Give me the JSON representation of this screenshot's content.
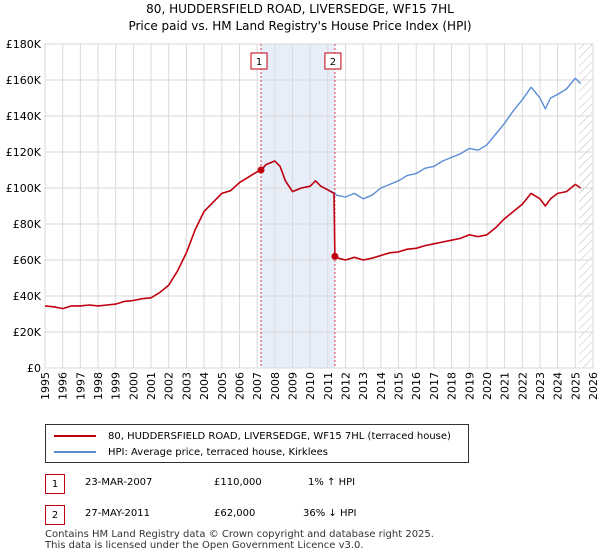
{
  "title": "80, HUDDERSFIELD ROAD, LIVERSEDGE, WF15 7HL",
  "subtitle": "Price paid vs. HM Land Registry's House Price Index (HPI)",
  "chart_data": {
    "type": "line",
    "title": "80, HUDDERSFIELD ROAD, LIVERSEDGE, WF15 7HL",
    "subtitle": "Price paid vs. HM Land Registry's House Price Index (HPI)",
    "xlabel": "",
    "ylabel": "",
    "xlim": [
      1995,
      2026
    ],
    "ylim": [
      0,
      180000
    ],
    "yticks": [
      0,
      20000,
      40000,
      60000,
      80000,
      100000,
      120000,
      140000,
      160000,
      180000
    ],
    "ytick_labels": [
      "£0",
      "£20K",
      "£40K",
      "£60K",
      "£80K",
      "£100K",
      "£120K",
      "£140K",
      "£160K",
      "£180K"
    ],
    "xticks": [
      1995,
      1996,
      1997,
      1998,
      1999,
      2000,
      2001,
      2002,
      2003,
      2004,
      2005,
      2006,
      2007,
      2008,
      2009,
      2010,
      2011,
      2012,
      2013,
      2014,
      2015,
      2016,
      2017,
      2018,
      2019,
      2020,
      2021,
      2022,
      2023,
      2024,
      2025,
      2026
    ],
    "xtick_labels": [
      "1995",
      "1996",
      "1997",
      "1998",
      "1999",
      "2000",
      "2001",
      "2002",
      "2003",
      "2004",
      "2005",
      "2006",
      "2007",
      "2008",
      "2009",
      "2010",
      "2011",
      "2012",
      "2013",
      "2014",
      "2015",
      "2016",
      "2017",
      "2018",
      "2019",
      "2020",
      "2021",
      "2022",
      "2023",
      "2024",
      "2025",
      "2026"
    ],
    "grid": true,
    "shaded_region": [
      2007.22,
      2011.4
    ],
    "future_region_start": 2025.2,
    "series": [
      {
        "name": "80, HUDDERSFIELD ROAD, LIVERSEDGE, WF15 7HL (terraced house)",
        "color": "#c0000f",
        "x": [
          1995.0,
          1995.5,
          1996.0,
          1996.5,
          1997.0,
          1997.5,
          1998.0,
          1998.5,
          1999.0,
          1999.5,
          2000.0,
          2000.5,
          2001.0,
          2001.5,
          2002.0,
          2002.5,
          2003.0,
          2003.5,
          2004.0,
          2004.5,
          2005.0,
          2005.5,
          2006.0,
          2006.5,
          2007.0,
          2007.22,
          2007.5,
          2008.0,
          2008.3,
          2008.6,
          2009.0,
          2009.5,
          2010.0,
          2010.3,
          2010.6,
          2011.0,
          2011.35,
          2011.4,
          2011.6,
          2012.0,
          2012.5,
          2013.0,
          2013.5,
          2014.0,
          2014.5,
          2015.0,
          2015.5,
          2016.0,
          2016.5,
          2017.0,
          2017.5,
          2018.0,
          2018.5,
          2019.0,
          2019.5,
          2020.0,
          2020.5,
          2021.0,
          2021.5,
          2022.0,
          2022.5,
          2023.0,
          2023.3,
          2023.6,
          2024.0,
          2024.5,
          2025.0,
          2025.3
        ],
        "values": [
          34500,
          34000,
          33000,
          34500,
          34500,
          35000,
          34500,
          35000,
          35500,
          37000,
          37500,
          38500,
          39000,
          42000,
          46000,
          54000,
          64000,
          77000,
          87000,
          92000,
          97000,
          98500,
          103000,
          106000,
          109000,
          110000,
          113000,
          115000,
          112000,
          104000,
          98000,
          100000,
          101000,
          104000,
          101000,
          99000,
          97000,
          62000,
          61000,
          60000,
          61500,
          60000,
          61000,
          62500,
          64000,
          64500,
          66000,
          66500,
          68000,
          69000,
          70000,
          71000,
          72000,
          74000,
          73000,
          74000,
          78000,
          83000,
          87000,
          91000,
          97000,
          94000,
          90000,
          94000,
          97000,
          98000,
          102000,
          100000
        ]
      },
      {
        "name": "HPI: Average price, terraced house, Kirklees",
        "color": "#5b8dd6",
        "x": [
          2007.22,
          2007.5,
          2008.0,
          2008.3,
          2008.6,
          2009.0,
          2009.5,
          2010.0,
          2010.3,
          2010.6,
          2011.0,
          2011.4,
          2011.5,
          2012.0,
          2012.5,
          2013.0,
          2013.5,
          2014.0,
          2014.5,
          2015.0,
          2015.5,
          2016.0,
          2016.5,
          2017.0,
          2017.5,
          2018.0,
          2018.5,
          2019.0,
          2019.5,
          2020.0,
          2020.5,
          2021.0,
          2021.5,
          2022.0,
          2022.5,
          2023.0,
          2023.3,
          2023.6,
          2024.0,
          2024.5,
          2025.0,
          2025.3
        ],
        "values": [
          109000,
          113000,
          115000,
          112000,
          104000,
          98000,
          100000,
          101000,
          104000,
          101000,
          99000,
          97000,
          96000,
          95000,
          97000,
          94000,
          96000,
          100000,
          102000,
          104000,
          107000,
          108000,
          111000,
          112000,
          115000,
          117000,
          119000,
          122000,
          121000,
          124000,
          130000,
          136000,
          143000,
          149000,
          156000,
          150000,
          144000,
          150000,
          152000,
          155000,
          161000,
          158000
        ]
      }
    ],
    "annotations": [
      {
        "label": "1",
        "x": 2007.22,
        "value": 110000
      },
      {
        "label": "2",
        "x": 2011.4,
        "value": 62000
      }
    ]
  },
  "legend": {
    "items": [
      {
        "label": "80, HUDDERSFIELD ROAD, LIVERSEDGE, WF15 7HL (terraced house)",
        "color": "#c0000f"
      },
      {
        "label": "HPI: Average price, terraced house, Kirklees",
        "color": "#5b8dd6"
      }
    ]
  },
  "transactions": [
    {
      "num": "1",
      "date": "23-MAR-2007",
      "price": "£110,000",
      "hpi": "1% ↑ HPI"
    },
    {
      "num": "2",
      "date": "27-MAY-2011",
      "price": "£62,000",
      "hpi": "36% ↓ HPI"
    }
  ],
  "footer": {
    "line1": "Contains HM Land Registry data © Crown copyright and database right 2025.",
    "line2": "This data is licensed under the Open Government Licence v3.0."
  }
}
